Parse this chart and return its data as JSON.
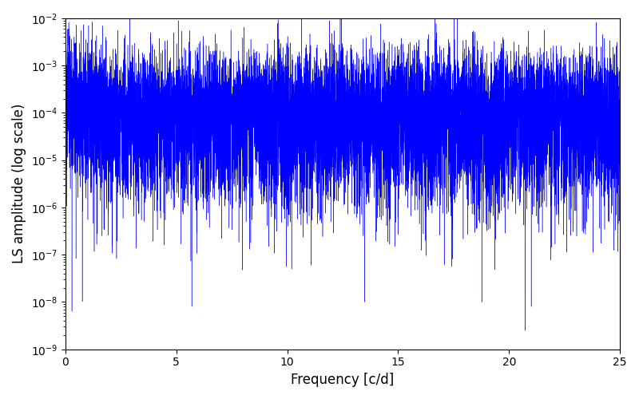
{
  "xlabel": "Frequency [c/d]",
  "ylabel": "LS amplitude (log scale)",
  "xlim": [
    0,
    25
  ],
  "ylim": [
    1e-09,
    0.01
  ],
  "line_color": "#0000ff",
  "line_width": 0.3,
  "background_color": "#ffffff",
  "figsize": [
    8.0,
    5.0
  ],
  "dpi": 100,
  "seed": 12345,
  "n_points": 15000,
  "freq_max": 25.0,
  "base_amplitude": 0.0001,
  "xlabel_fontsize": 12,
  "ylabel_fontsize": 12
}
